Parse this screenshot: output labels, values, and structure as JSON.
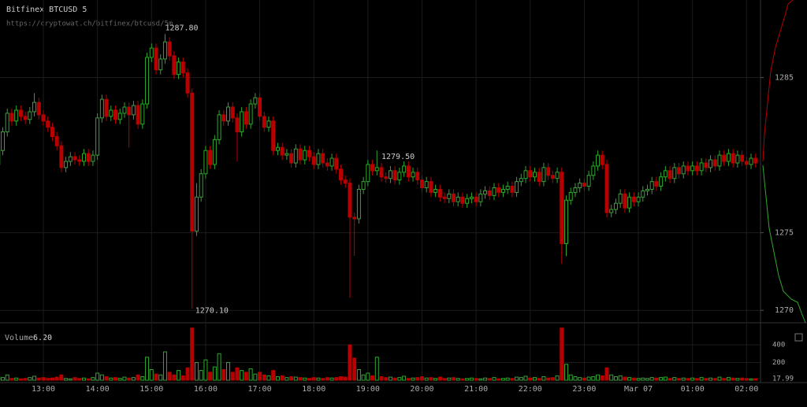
{
  "chart_data": {
    "type": "candlestick",
    "title": "Bitfinex BTCUSD 5",
    "subtitle": "https://cryptowat.ch/bitfinex/btcusd/5m",
    "categories": [
      null,
      null,
      null,
      null,
      null,
      null,
      null,
      null,
      null,
      null,
      "13:00",
      null,
      null,
      null,
      null,
      null,
      null,
      null,
      null,
      null,
      null,
      null,
      "14:00",
      null,
      null,
      null,
      null,
      null,
      null,
      null,
      null,
      null,
      null,
      null,
      "15:00",
      null,
      null,
      null,
      null,
      null,
      null,
      null,
      null,
      null,
      null,
      null,
      "16:00",
      null,
      null,
      null,
      null,
      null,
      null,
      null,
      null,
      null,
      null,
      null,
      "17:00",
      null,
      null,
      null,
      null,
      null,
      null,
      null,
      null,
      null,
      null,
      null,
      "18:00",
      null,
      null,
      null,
      null,
      null,
      null,
      null,
      null,
      null,
      null,
      null,
      "19:00",
      null,
      null,
      null,
      null,
      null,
      null,
      null,
      null,
      null,
      null,
      null,
      "20:00",
      null,
      null,
      null,
      null,
      null,
      null,
      null,
      null,
      null,
      null,
      null,
      "21:00",
      null,
      null,
      null,
      null,
      null,
      null,
      null,
      null,
      null,
      null,
      null,
      "22:00",
      null,
      null,
      null,
      null,
      null,
      null,
      null,
      null,
      null,
      null,
      null,
      "23:00",
      null,
      null,
      null,
      null,
      null,
      null,
      null,
      null,
      null,
      null,
      null,
      "Mar 07",
      null,
      null,
      null,
      null,
      null,
      null,
      null,
      null,
      null,
      null,
      null,
      "01:00",
      null,
      null,
      null,
      null,
      null,
      null,
      null,
      null,
      null,
      null,
      null,
      "02:00",
      null,
      null
    ],
    "open": [
      1279.4,
      1280.3,
      1281.5,
      1282.7,
      1282.2,
      1282.9,
      1282.5,
      1282.3,
      1282.8,
      1283.4,
      1282.6,
      1282.2,
      1281.8,
      1281.2,
      1280.6,
      1279.2,
      1279.6,
      1279.9,
      1279.7,
      1279.6,
      1280.1,
      1279.6,
      1280.0,
      1282.4,
      1283.6,
      1282.5,
      1282.9,
      1282.3,
      1282.7,
      1283.1,
      1282.6,
      1283.2,
      1282.0,
      1283.3,
      1286.3,
      1286.9,
      1285.5,
      1286.2,
      1287.3,
      1286.4,
      1285.2,
      1286.0,
      1285.3,
      1284.0,
      1275.1,
      1277.3,
      1278.8,
      1280.3,
      1279.4,
      1281.0,
      1282.6,
      1282.2,
      1283.1,
      1282.4,
      1281.5,
      1282.8,
      1282.0,
      1283.3,
      1283.7,
      1282.5,
      1281.8,
      1282.2,
      1280.3,
      1280.5,
      1280.0,
      1280.1,
      1279.5,
      1280.4,
      1279.7,
      1280.3,
      1279.9,
      1279.4,
      1280.1,
      1279.5,
      1279.3,
      1279.8,
      1279.1,
      1278.4,
      1278.2,
      1276.0,
      1275.9,
      1277.8,
      1278.3,
      1279.4,
      1279.0,
      1279.2,
      1278.6,
      1278.5,
      1279.0,
      1278.4,
      1278.9,
      1279.3,
      1278.6,
      1278.9,
      1278.4,
      1277.9,
      1278.3,
      1277.6,
      1277.8,
      1277.3,
      1277.2,
      1277.5,
      1277.0,
      1277.3,
      1276.9,
      1277.2,
      1277.3,
      1277.0,
      1277.5,
      1277.7,
      1277.4,
      1277.9,
      1277.6,
      1277.8,
      1278.0,
      1277.6,
      1278.3,
      1278.5,
      1279.0,
      1278.6,
      1278.9,
      1278.3,
      1279.2,
      1278.7,
      1278.5,
      1278.9,
      1274.3,
      1277.1,
      1277.6,
      1277.9,
      1278.2,
      1278.0,
      1278.7,
      1279.3,
      1280.0,
      1279.4,
      1276.3,
      1276.5,
      1276.9,
      1277.5,
      1276.6,
      1277.3,
      1277.0,
      1277.3,
      1277.7,
      1277.8,
      1278.3,
      1278.0,
      1278.6,
      1279.0,
      1278.5,
      1279.2,
      1278.8,
      1279.3,
      1279.0,
      1279.3,
      1279.0,
      1279.5,
      1279.2,
      1279.7,
      1279.3,
      1280.0,
      1279.6,
      1280.1,
      1279.5,
      1280.0,
      1279.6,
      1279.4,
      1279.8
    ],
    "high": [
      1280.6,
      1281.8,
      1283.0,
      1283.0,
      1283.2,
      1283.2,
      1282.8,
      1283.1,
      1284.0,
      1283.7,
      1282.9,
      1282.5,
      1282.1,
      1281.5,
      1280.9,
      1279.9,
      1280.2,
      1280.2,
      1280.0,
      1280.4,
      1280.4,
      1280.3,
      1282.7,
      1283.9,
      1283.9,
      1283.2,
      1283.2,
      1283.0,
      1283.4,
      1283.4,
      1283.5,
      1283.5,
      1283.6,
      1286.6,
      1287.2,
      1287.2,
      1286.5,
      1287.8,
      1287.6,
      1286.7,
      1286.3,
      1286.3,
      1285.6,
      1284.3,
      1278.2,
      1279.1,
      1280.6,
      1280.6,
      1281.3,
      1282.9,
      1282.9,
      1283.4,
      1283.4,
      1282.7,
      1283.1,
      1283.1,
      1283.6,
      1284.0,
      1284.0,
      1282.8,
      1282.5,
      1282.5,
      1280.8,
      1280.8,
      1280.4,
      1280.4,
      1280.7,
      1280.7,
      1280.6,
      1280.6,
      1280.2,
      1280.4,
      1280.4,
      1279.8,
      1280.1,
      1280.1,
      1279.4,
      1278.7,
      1278.5,
      1276.3,
      1278.1,
      1278.6,
      1279.7,
      1279.7,
      1280.3,
      1279.5,
      1278.9,
      1279.3,
      1279.3,
      1279.2,
      1279.6,
      1279.6,
      1279.2,
      1279.2,
      1278.7,
      1278.6,
      1278.6,
      1278.1,
      1278.1,
      1277.6,
      1277.8,
      1277.8,
      1277.6,
      1277.6,
      1277.5,
      1277.6,
      1277.6,
      1277.8,
      1278.0,
      1278.0,
      1278.2,
      1278.2,
      1278.1,
      1278.3,
      1278.3,
      1278.6,
      1278.8,
      1279.3,
      1279.3,
      1279.2,
      1279.2,
      1279.5,
      1279.5,
      1279.0,
      1279.2,
      1279.2,
      1277.4,
      1277.9,
      1278.2,
      1278.5,
      1278.5,
      1279.0,
      1279.6,
      1280.3,
      1280.3,
      1279.7,
      1276.8,
      1277.2,
      1277.8,
      1277.8,
      1277.6,
      1277.6,
      1277.6,
      1278.0,
      1278.1,
      1278.6,
      1278.6,
      1278.9,
      1279.3,
      1279.3,
      1279.5,
      1279.5,
      1279.6,
      1279.6,
      1279.6,
      1279.6,
      1279.8,
      1279.8,
      1280.0,
      1280.0,
      1280.3,
      1280.3,
      1280.4,
      1280.4,
      1280.3,
      1280.3,
      1279.9,
      1280.1,
      1280.1
    ],
    "low": [
      1279.1,
      1280.0,
      1281.2,
      1281.9,
      1281.9,
      1282.2,
      1282.0,
      1282.0,
      1282.5,
      1282.3,
      1281.9,
      1281.5,
      1280.9,
      1280.3,
      1278.9,
      1278.9,
      1279.3,
      1279.4,
      1279.3,
      1279.3,
      1279.3,
      1279.3,
      1279.7,
      1282.1,
      1282.2,
      1282.2,
      1282.0,
      1282.0,
      1282.4,
      1280.5,
      1282.3,
      1281.7,
      1281.7,
      1283.0,
      1286.0,
      1285.2,
      1285.2,
      1285.9,
      1286.1,
      1284.9,
      1284.9,
      1285.0,
      1283.7,
      1270.1,
      1274.8,
      1277.0,
      1278.5,
      1279.1,
      1279.1,
      1280.7,
      1281.9,
      1281.9,
      1282.1,
      1279.6,
      1281.2,
      1281.7,
      1281.7,
      1283.0,
      1282.2,
      1281.5,
      1281.5,
      1280.0,
      1280.0,
      1279.7,
      1279.7,
      1279.2,
      1279.2,
      1279.4,
      1279.4,
      1279.6,
      1279.1,
      1279.1,
      1279.2,
      1279.0,
      1279.0,
      1278.8,
      1278.1,
      1277.9,
      1270.8,
      1273.5,
      1275.6,
      1277.5,
      1278.0,
      1278.7,
      1278.7,
      1278.3,
      1278.2,
      1278.2,
      1278.1,
      1278.1,
      1278.6,
      1278.3,
      1278.3,
      1278.1,
      1277.6,
      1277.6,
      1277.3,
      1277.3,
      1277.0,
      1276.9,
      1276.9,
      1276.7,
      1276.7,
      1276.6,
      1276.6,
      1276.9,
      1276.7,
      1276.7,
      1277.2,
      1277.1,
      1277.1,
      1277.3,
      1277.3,
      1277.5,
      1277.3,
      1277.3,
      1278.0,
      1278.2,
      1278.3,
      1278.3,
      1278.0,
      1278.0,
      1278.4,
      1278.2,
      1278.2,
      1273.0,
      1273.5,
      1276.8,
      1277.3,
      1277.6,
      1277.7,
      1277.7,
      1278.4,
      1279.0,
      1279.1,
      1276.0,
      1276.0,
      1276.2,
      1276.6,
      1276.3,
      1276.3,
      1276.7,
      1276.7,
      1277.0,
      1277.4,
      1277.5,
      1277.7,
      1277.7,
      1278.3,
      1278.2,
      1278.2,
      1278.5,
      1278.5,
      1278.7,
      1278.7,
      1278.7,
      1278.7,
      1278.9,
      1278.9,
      1279.0,
      1279.0,
      1279.3,
      1279.3,
      1279.2,
      1279.2,
      1279.3,
      1279.1,
      1279.1,
      1279.2
    ],
    "close": [
      1280.3,
      1281.5,
      1282.7,
      1282.2,
      1282.9,
      1282.5,
      1282.3,
      1282.8,
      1283.4,
      1282.6,
      1282.2,
      1281.8,
      1281.2,
      1280.6,
      1279.2,
      1279.6,
      1279.9,
      1279.7,
      1279.6,
      1280.1,
      1279.6,
      1280.0,
      1282.4,
      1283.6,
      1282.5,
      1282.9,
      1282.3,
      1282.7,
      1283.1,
      1282.6,
      1283.2,
      1282.0,
      1283.3,
      1286.3,
      1286.9,
      1285.5,
      1286.2,
      1287.3,
      1286.4,
      1285.2,
      1286.0,
      1285.3,
      1284.0,
      1275.1,
      1277.3,
      1278.8,
      1280.3,
      1279.4,
      1281.0,
      1282.6,
      1282.2,
      1283.1,
      1282.4,
      1281.5,
      1282.8,
      1282.0,
      1283.3,
      1283.7,
      1282.5,
      1281.8,
      1282.2,
      1280.3,
      1280.5,
      1280.0,
      1280.1,
      1279.5,
      1280.4,
      1279.7,
      1280.3,
      1279.9,
      1279.4,
      1280.1,
      1279.5,
      1279.3,
      1279.8,
      1279.1,
      1278.4,
      1278.2,
      1276.0,
      1275.9,
      1277.8,
      1278.3,
      1279.4,
      1279.0,
      1279.2,
      1278.6,
      1278.5,
      1279.0,
      1278.4,
      1278.9,
      1279.3,
      1278.6,
      1278.9,
      1278.4,
      1277.9,
      1278.3,
      1277.6,
      1277.8,
      1277.3,
      1277.2,
      1277.5,
      1277.0,
      1277.3,
      1276.9,
      1277.2,
      1277.3,
      1277.0,
      1277.5,
      1277.7,
      1277.4,
      1277.9,
      1277.6,
      1277.8,
      1278.0,
      1277.6,
      1278.3,
      1278.5,
      1279.0,
      1278.6,
      1278.9,
      1278.3,
      1279.2,
      1278.7,
      1278.5,
      1278.9,
      1274.3,
      1277.1,
      1277.6,
      1277.9,
      1278.2,
      1278.0,
      1278.7,
      1279.3,
      1280.0,
      1279.4,
      1276.3,
      1276.5,
      1276.9,
      1277.5,
      1276.6,
      1277.3,
      1277.0,
      1277.3,
      1277.7,
      1277.8,
      1278.3,
      1278.0,
      1278.6,
      1279.0,
      1278.5,
      1279.2,
      1278.8,
      1279.3,
      1279.0,
      1279.3,
      1279.0,
      1279.5,
      1279.2,
      1279.7,
      1279.3,
      1280.0,
      1279.6,
      1280.1,
      1279.5,
      1280.0,
      1279.6,
      1279.4,
      1279.8,
      1279.5
    ],
    "colors": {
      "up": "#2fa82f",
      "down": "#b80000"
    },
    "ylim": [
      1269.2,
      1290.0
    ],
    "yticks": [
      1270,
      1275,
      1285
    ],
    "annotations": [
      {
        "value": 1287.8,
        "label": "1287.80"
      },
      {
        "value": 1270.1,
        "label": "1270.10"
      },
      {
        "value": 1279.5,
        "label": "1279.50"
      }
    ],
    "volume": {
      "label": "Volume",
      "current_label": "6.20",
      "values": [
        40,
        30,
        60,
        20,
        25,
        15,
        20,
        30,
        45,
        25,
        30,
        20,
        25,
        35,
        60,
        20,
        15,
        30,
        20,
        25,
        15,
        30,
        80,
        60,
        40,
        25,
        30,
        20,
        35,
        25,
        30,
        60,
        40,
        260,
        120,
        70,
        60,
        320,
        90,
        60,
        110,
        50,
        140,
        590,
        200,
        110,
        230,
        90,
        150,
        300,
        120,
        200,
        90,
        140,
        110,
        90,
        130,
        70,
        90,
        60,
        50,
        110,
        40,
        50,
        30,
        40,
        35,
        30,
        25,
        20,
        30,
        25,
        20,
        30,
        25,
        30,
        40,
        35,
        400,
        250,
        120,
        60,
        80,
        50,
        260,
        40,
        30,
        35,
        25,
        30,
        45,
        20,
        25,
        30,
        40,
        25,
        30,
        20,
        35,
        20,
        25,
        30,
        20,
        15,
        20,
        25,
        20,
        15,
        25,
        20,
        30,
        15,
        20,
        25,
        20,
        35,
        30,
        45,
        25,
        30,
        20,
        40,
        25,
        30,
        50,
        590,
        180,
        60,
        40,
        30,
        25,
        35,
        40,
        60,
        50,
        140,
        60,
        40,
        50,
        35,
        30,
        25,
        20,
        25,
        20,
        30,
        25,
        30,
        35,
        20,
        30,
        20,
        25,
        20,
        25,
        20,
        30,
        20,
        25,
        20,
        35,
        20,
        30,
        25,
        20,
        25,
        20,
        15,
        18
      ],
      "ylim": [
        0,
        587
      ],
      "yticks": [
        17.99,
        200,
        400
      ]
    }
  }
}
